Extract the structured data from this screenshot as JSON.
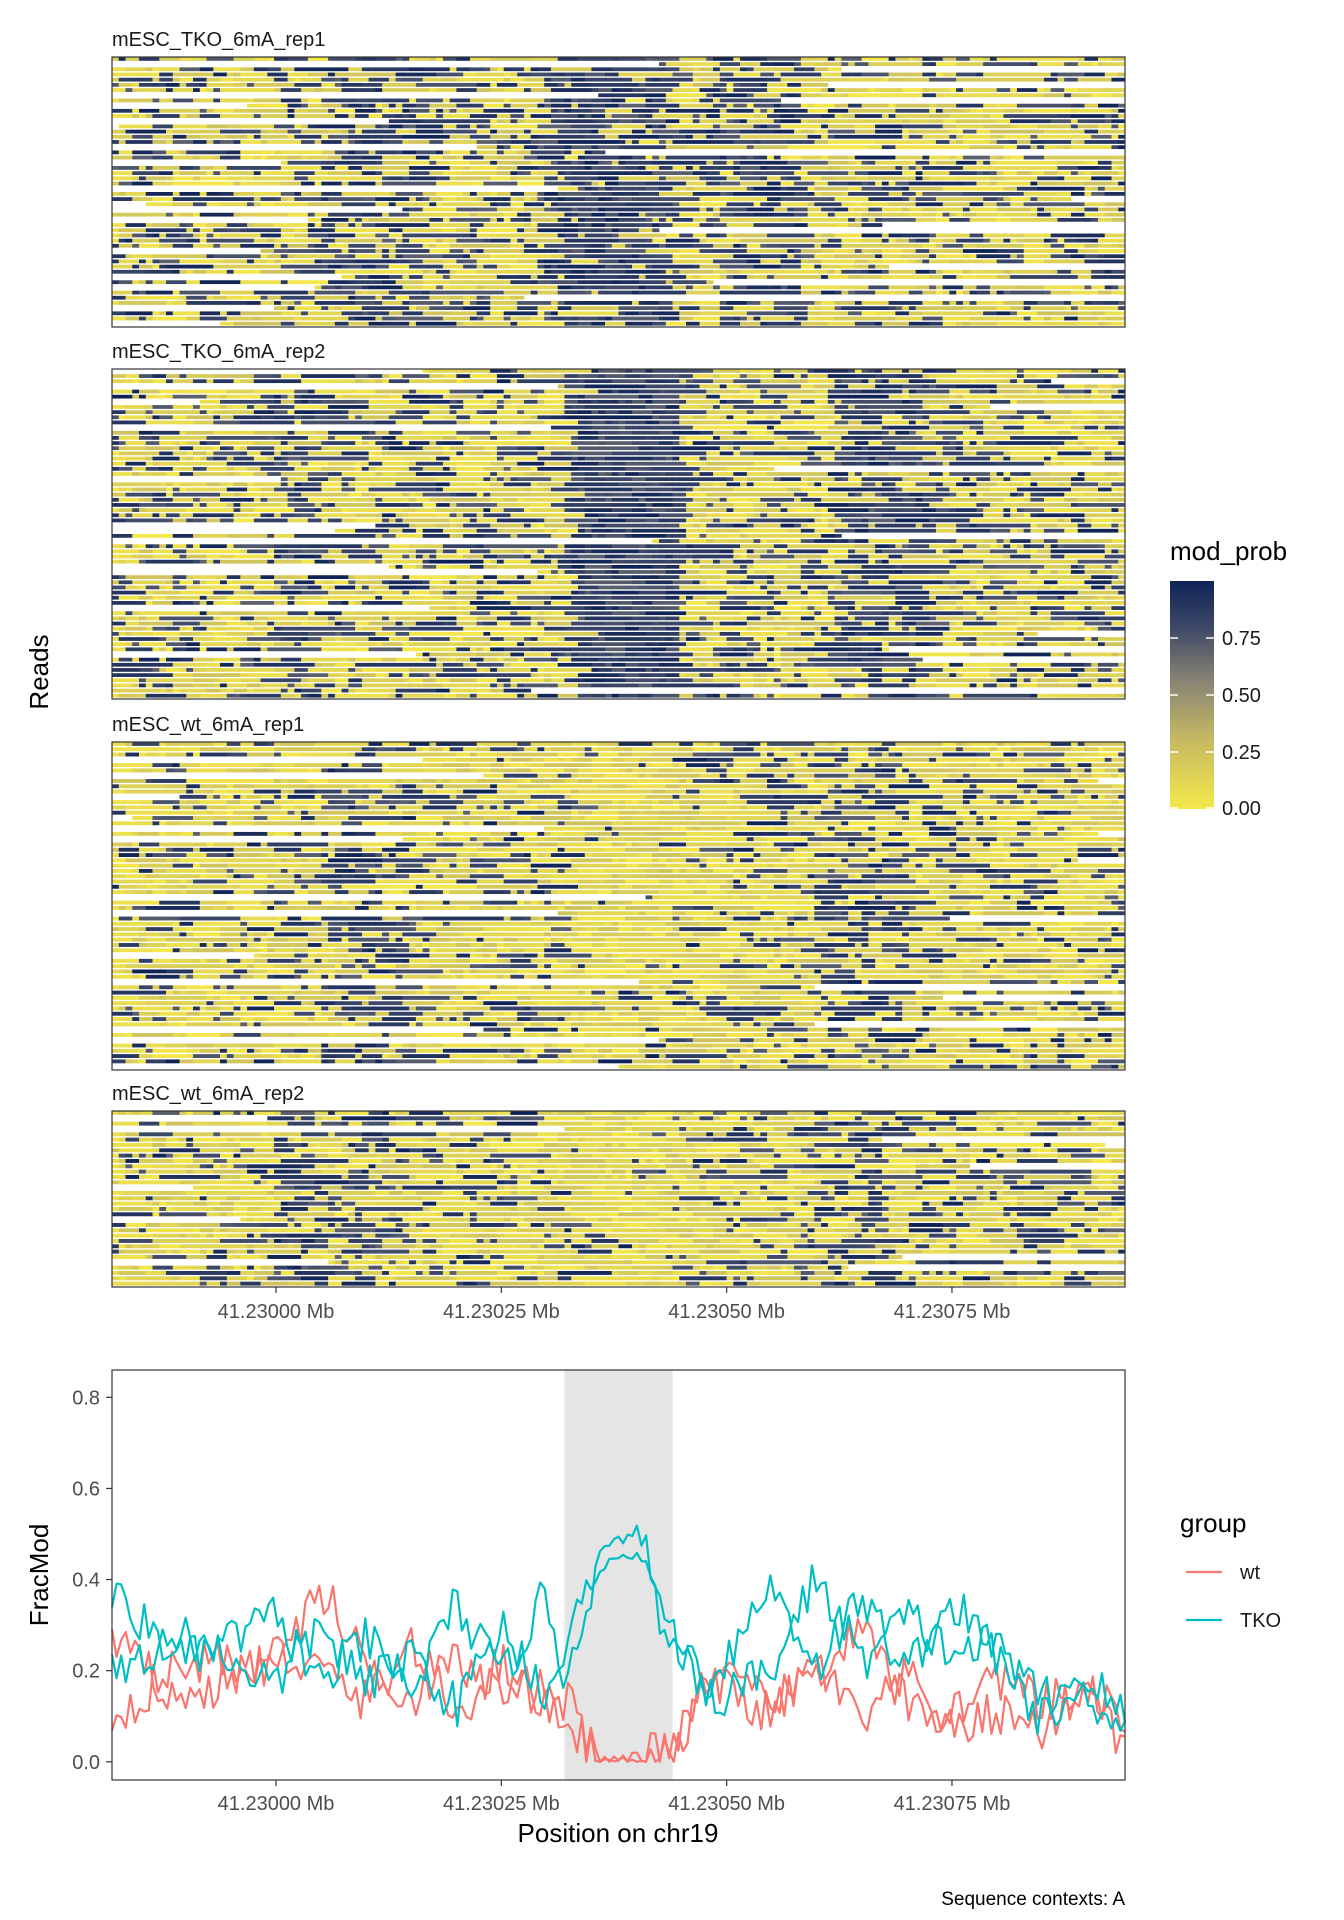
{
  "chart_data": [
    {
      "type": "heatmap",
      "ylabel": "Reads",
      "xlabel": "",
      "x_ticks": [
        "41.23000 Mb",
        "41.23025 Mb",
        "41.23050 Mb",
        "41.23075 Mb"
      ],
      "x_tick_values": [
        41.23,
        41.23025,
        41.2305,
        41.23075
      ],
      "xlim": [
        41.229818,
        41.230942
      ],
      "fill_legend": {
        "title": "mod_prob",
        "ticks": [
          "0.00",
          "0.25",
          "0.50",
          "0.75"
        ],
        "tick_values": [
          0,
          0.25,
          0.5,
          0.75
        ],
        "range": [
          0,
          1
        ],
        "low_color": "#F5E84B",
        "mid_color": "#8C8673",
        "high_color": "#0E2255"
      },
      "panels": [
        {
          "name": "mESC_TKO_6mA_rep1",
          "n_reads": 52,
          "hotspots": [
            [
              41.23029,
              41.23043,
              0.55
            ],
            [
              41.23048,
              41.23058,
              0.4
            ],
            [
              41.23005,
              41.23016,
              0.35
            ]
          ],
          "base_prob": 0.33
        },
        {
          "name": "mESC_TKO_6mA_rep2",
          "n_reads": 64,
          "hotspots": [
            [
              41.23032,
              41.23045,
              0.7
            ],
            [
              41.23062,
              41.23072,
              0.45
            ],
            [
              41.22998,
              41.23005,
              0.3
            ]
          ],
          "base_prob": 0.32
        },
        {
          "name": "mESC_wt_6mA_rep1",
          "n_reads": 62,
          "hotspots": [
            [
              41.23005,
              41.23015,
              0.25
            ],
            [
              41.2306,
              41.2307,
              0.25
            ]
          ],
          "base_prob": 0.22,
          "depleted": [
            41.23032,
            41.23044
          ]
        },
        {
          "name": "mESC_wt_6mA_rep2",
          "n_reads": 33,
          "hotspots": [
            [
              41.23,
              41.23012,
              0.3
            ],
            [
              41.23058,
              41.23068,
              0.25
            ]
          ],
          "base_prob": 0.24,
          "depleted": [
            41.23032,
            41.23044
          ]
        }
      ]
    },
    {
      "type": "line",
      "xlabel": "Position on chr19",
      "ylabel": "FracMod",
      "ylim": [
        -0.04,
        0.86
      ],
      "y_ticks": [
        "0.0",
        "0.2",
        "0.4",
        "0.6",
        "0.8"
      ],
      "y_tick_values": [
        0,
        0.2,
        0.4,
        0.6,
        0.8
      ],
      "x_ticks": [
        "41.23000 Mb",
        "41.23025 Mb",
        "41.23050 Mb",
        "41.23075 Mb"
      ],
      "x_tick_values": [
        41.23,
        41.23025,
        41.2305,
        41.23075
      ],
      "xlim": [
        41.229818,
        41.230942
      ],
      "highlight_region": {
        "x": [
          41.23032,
          41.23044
        ],
        "color": "#E5E5E5"
      },
      "legend": {
        "title": "group",
        "position": "right"
      },
      "series": [
        {
          "name": "wt",
          "color": "#F8766D",
          "label": "wt",
          "x": [
            41.22982,
            41.2299,
            41.23,
            41.23005,
            41.2301,
            41.23015,
            41.2302,
            41.23025,
            41.2303,
            41.23032,
            41.23036,
            41.2304,
            41.23044,
            41.23048,
            41.23055,
            41.2306,
            41.23065,
            41.2307,
            41.23075,
            41.2308,
            41.23085,
            41.2309,
            41.23094
          ],
          "y": [
            0.1,
            0.22,
            0.21,
            0.38,
            0.22,
            0.14,
            0.22,
            0.15,
            0.16,
            0.14,
            0.01,
            0.0,
            0.01,
            0.2,
            0.12,
            0.2,
            0.29,
            0.12,
            0.11,
            0.19,
            0.12,
            0.16,
            0.04
          ]
        },
        {
          "name": "wt",
          "color": "#F8766D",
          "x": [
            41.22982,
            41.2299,
            41.23,
            41.23005,
            41.2301,
            41.23015,
            41.2302,
            41.23025,
            41.2303,
            41.23032,
            41.23036,
            41.2304,
            41.23044,
            41.23048,
            41.23055,
            41.2306,
            41.23065,
            41.2307,
            41.23075,
            41.2308,
            41.23085,
            41.2309,
            41.23094
          ],
          "y": [
            0.26,
            0.13,
            0.24,
            0.2,
            0.13,
            0.26,
            0.1,
            0.22,
            0.12,
            0.1,
            0.0,
            0.01,
            0.03,
            0.18,
            0.1,
            0.22,
            0.08,
            0.19,
            0.06,
            0.11,
            0.07,
            0.17,
            0.09
          ]
        },
        {
          "name": "TKO",
          "color": "#00BFC4",
          "label": "TKO",
          "x": [
            41.22982,
            41.2299,
            41.23,
            41.23005,
            41.2301,
            41.23015,
            41.2302,
            41.23025,
            41.2303,
            41.23032,
            41.23036,
            41.2304,
            41.23044,
            41.23048,
            41.23055,
            41.2306,
            41.23065,
            41.2307,
            41.23075,
            41.2308,
            41.23085,
            41.2309,
            41.23094
          ],
          "y": [
            0.36,
            0.22,
            0.32,
            0.17,
            0.27,
            0.15,
            0.35,
            0.18,
            0.37,
            0.18,
            0.46,
            0.51,
            0.28,
            0.17,
            0.39,
            0.21,
            0.36,
            0.2,
            0.35,
            0.23,
            0.14,
            0.19,
            0.1
          ]
        },
        {
          "name": "TKO",
          "color": "#00BFC4",
          "x": [
            41.22982,
            41.2299,
            41.23,
            41.23005,
            41.2301,
            41.23015,
            41.2302,
            41.23025,
            41.2303,
            41.23032,
            41.23036,
            41.2304,
            41.23044,
            41.23048,
            41.23055,
            41.2306,
            41.23065,
            41.2307,
            41.23075,
            41.2308,
            41.23085,
            41.2309,
            41.23094
          ],
          "y": [
            0.2,
            0.28,
            0.17,
            0.3,
            0.16,
            0.24,
            0.12,
            0.3,
            0.15,
            0.25,
            0.43,
            0.46,
            0.25,
            0.13,
            0.2,
            0.41,
            0.22,
            0.32,
            0.24,
            0.26,
            0.09,
            0.15,
            0.08
          ]
        }
      ]
    }
  ],
  "caption": "Sequence contexts: A"
}
